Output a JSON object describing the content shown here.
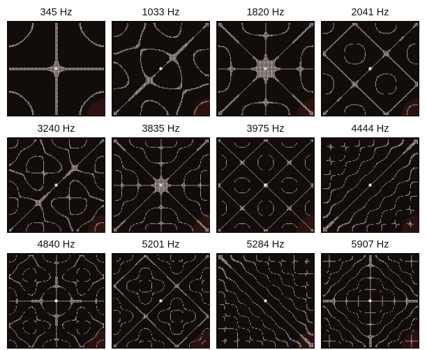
{
  "figure": {
    "plates": [
      {
        "label": "345 Hz"
      },
      {
        "label": "1033 Hz"
      },
      {
        "label": "1820 Hz"
      },
      {
        "label": "2041 Hz"
      },
      {
        "label": "3240 Hz"
      },
      {
        "label": "3835 Hz"
      },
      {
        "label": "3975 Hz"
      },
      {
        "label": "4444 Hz"
      },
      {
        "label": "4840 Hz"
      },
      {
        "label": "5201 Hz"
      },
      {
        "label": "5284 Hz"
      },
      {
        "label": "5907 Hz"
      }
    ],
    "colors": {
      "plate": "#120c0b",
      "sand": "#e9e0d8",
      "label": "#111111"
    }
  }
}
